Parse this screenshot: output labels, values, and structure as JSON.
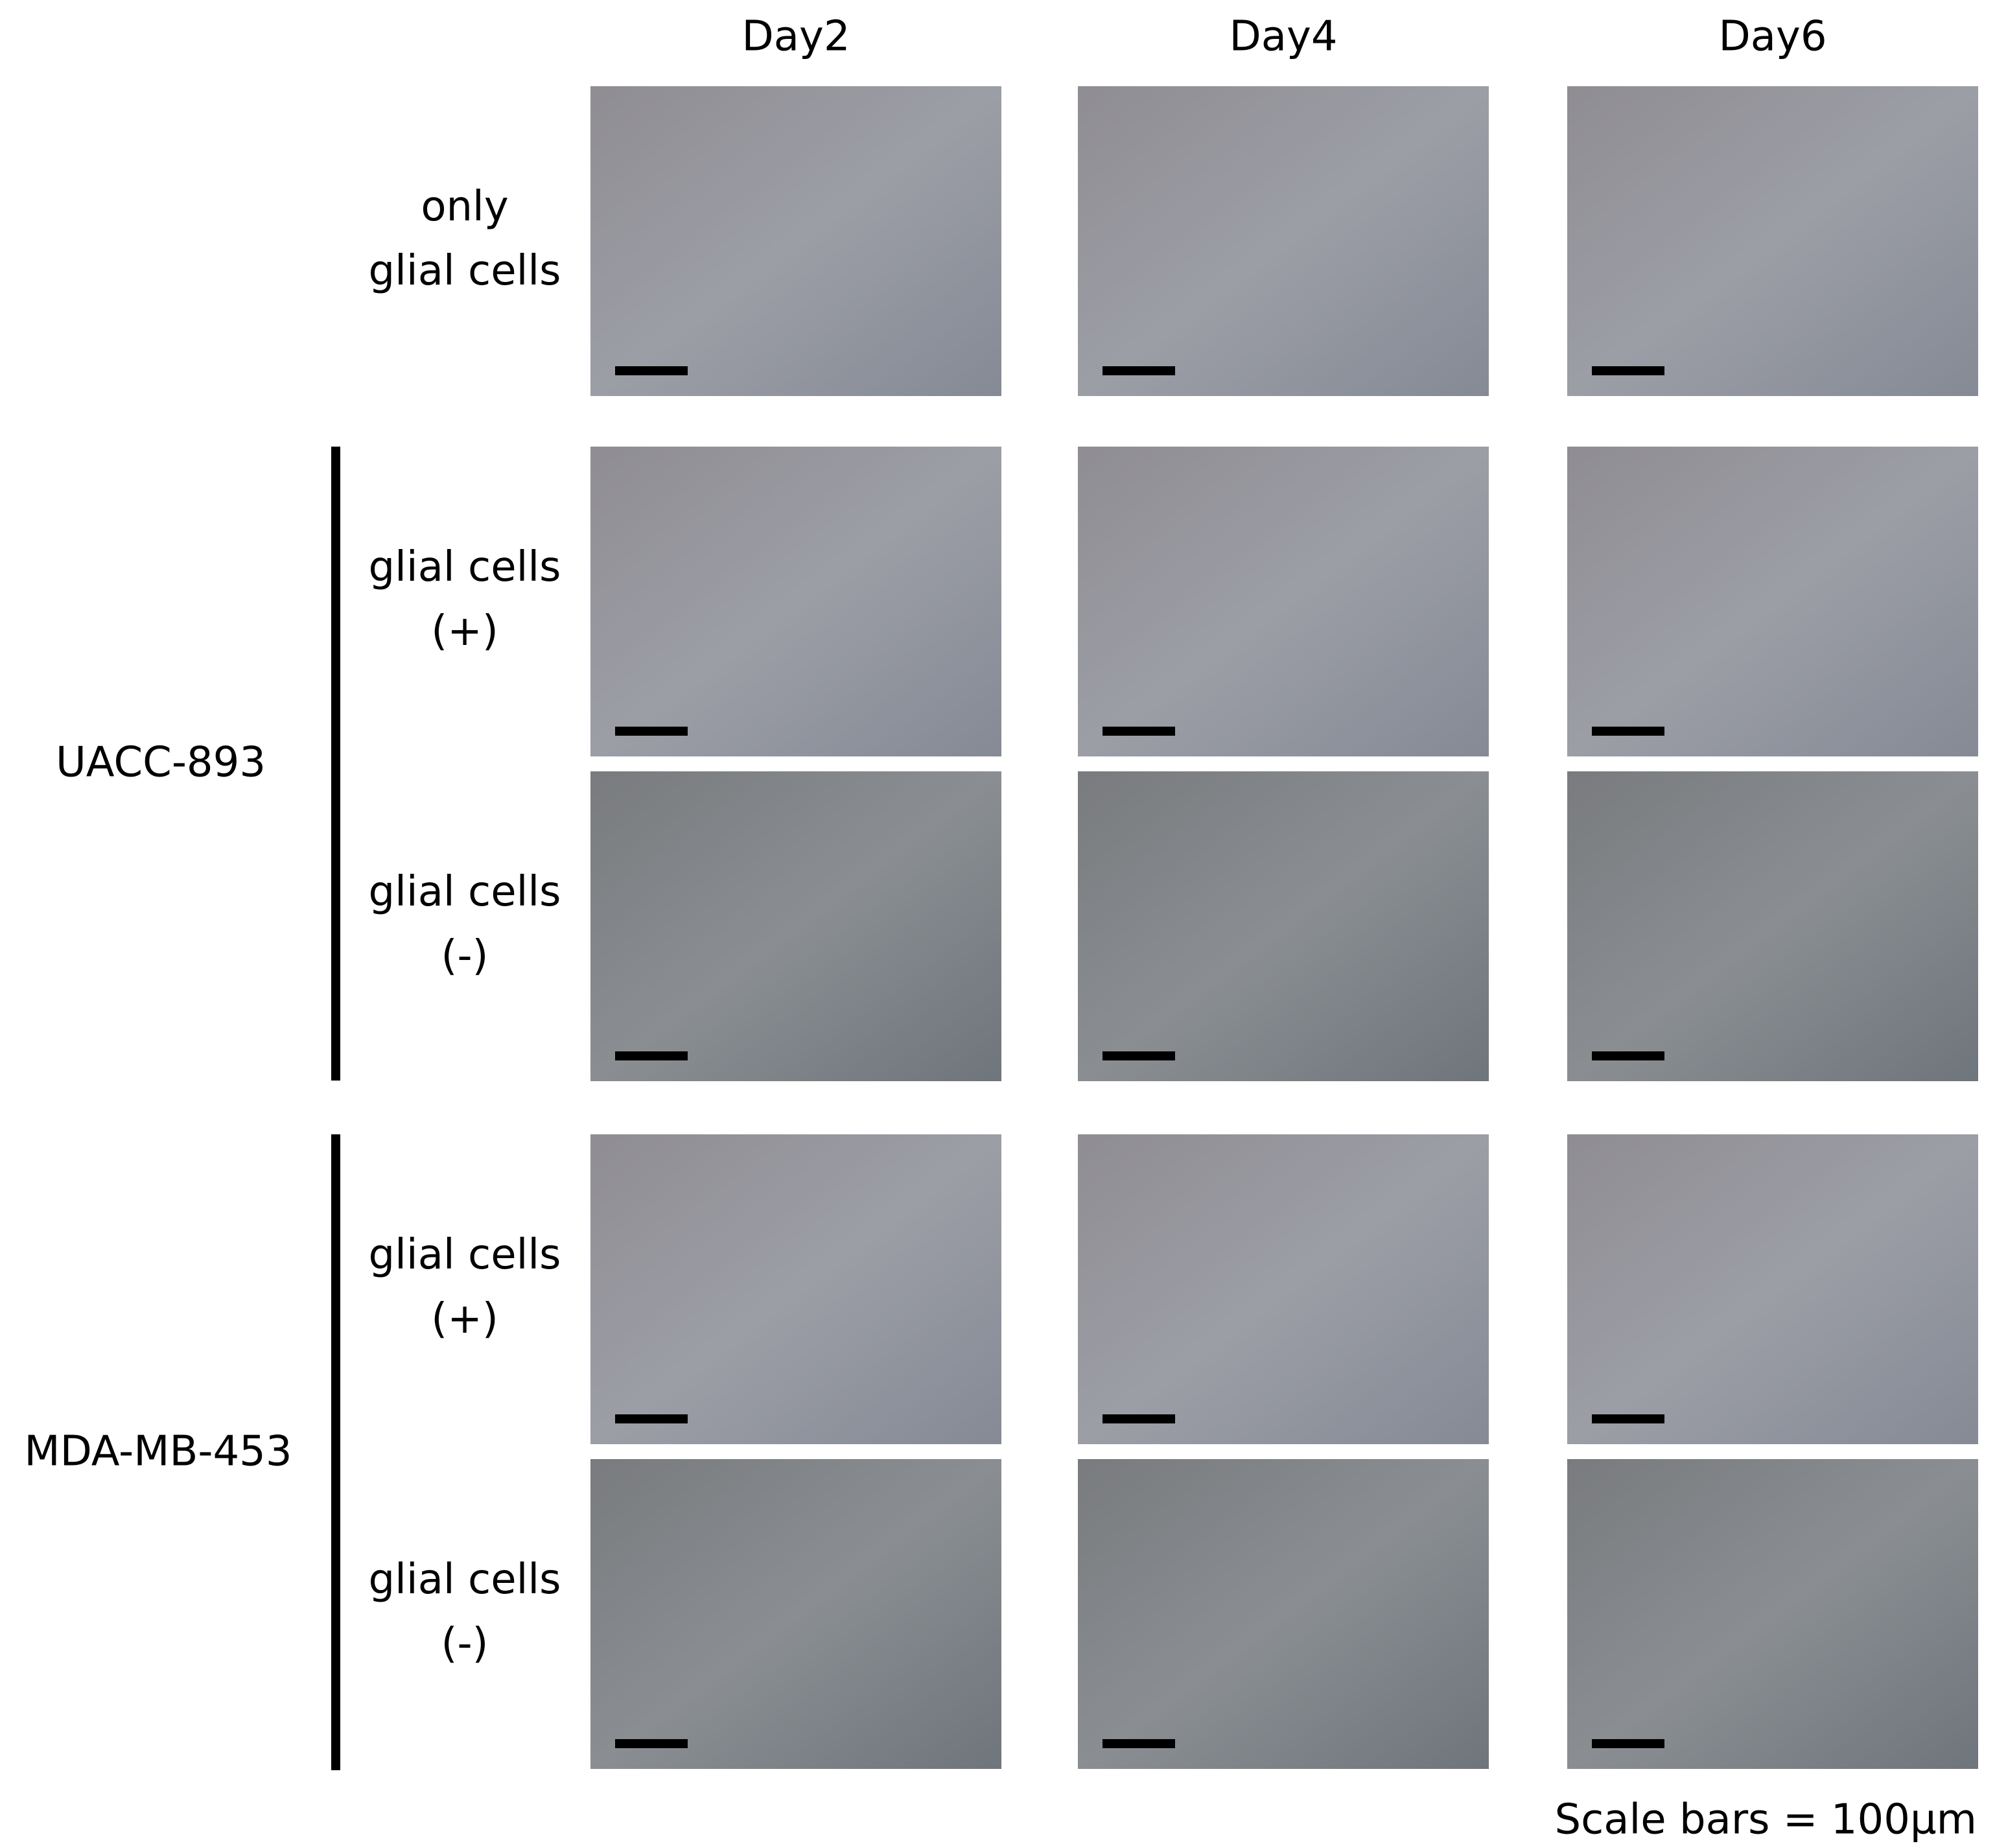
{
  "columns": [
    "Day2",
    "Day4",
    "Day6"
  ],
  "rows": [
    {
      "label": [
        "only",
        "glial cells"
      ]
    },
    {
      "label": [
        "glial cells",
        "(+)"
      ]
    },
    {
      "label": [
        "glial cells",
        "(-)"
      ]
    },
    {
      "label": [
        "glial cells",
        "(+)"
      ]
    },
    {
      "label": [
        "glial cells",
        "(-)"
      ]
    }
  ],
  "groups": [
    {
      "label": "UACC-893"
    },
    {
      "label": "MDA-MB-453"
    }
  ],
  "footer": "Scale bars = 100µm"
}
